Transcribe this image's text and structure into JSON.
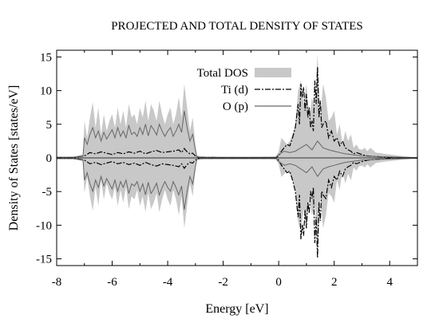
{
  "chart_data": {
    "type": "area",
    "title": "PROJECTED AND TOTAL DENSITY OF STATES",
    "xlabel": "Energy [eV]",
    "ylabel": "Density of States [states/eV]",
    "xlim": [
      -8,
      5
    ],
    "ylim": [
      -16,
      16
    ],
    "xticks": [
      -8,
      -6,
      -4,
      -2,
      0,
      2,
      4
    ],
    "yticks": [
      -15,
      -10,
      -5,
      0,
      5,
      10,
      15
    ],
    "grid": false,
    "legend_position": "top-center",
    "series": [
      {
        "name": "Total DOS",
        "style": "filled",
        "color": "#c8c8c8",
        "x": [
          -8,
          -7.4,
          -7.05,
          -7.0,
          -6.9,
          -6.8,
          -6.7,
          -6.6,
          -6.5,
          -6.4,
          -6.3,
          -6.2,
          -6.1,
          -6.0,
          -5.9,
          -5.8,
          -5.7,
          -5.6,
          -5.5,
          -5.4,
          -5.3,
          -5.2,
          -5.1,
          -5.0,
          -4.9,
          -4.8,
          -4.7,
          -4.6,
          -4.5,
          -4.4,
          -4.3,
          -4.2,
          -4.1,
          -4.0,
          -3.9,
          -3.8,
          -3.7,
          -3.6,
          -3.5,
          -3.4,
          -3.3,
          -3.2,
          -3.1,
          -3.0,
          -2.95,
          -2.8,
          -2.0,
          -1.0,
          -0.1,
          0.0,
          0.1,
          0.2,
          0.3,
          0.4,
          0.5,
          0.6,
          0.7,
          0.8,
          0.9,
          1.0,
          1.1,
          1.2,
          1.3,
          1.4,
          1.5,
          1.6,
          1.7,
          1.8,
          1.9,
          2.0,
          2.1,
          2.2,
          2.3,
          2.4,
          2.5,
          2.6,
          2.7,
          2.8,
          2.9,
          3.0,
          3.1,
          3.2,
          3.3,
          3.5,
          3.8,
          4.2,
          4.6,
          5.0
        ],
        "y": [
          0.2,
          0.2,
          0.5,
          5.5,
          3.0,
          6.0,
          8.3,
          4.5,
          7.5,
          3.5,
          6.5,
          4.0,
          5.5,
          6.5,
          4.5,
          7.5,
          5.0,
          7.0,
          4.5,
          8.0,
          6.0,
          6.5,
          5.0,
          7.5,
          6.0,
          8.5,
          5.5,
          8.0,
          7.0,
          5.5,
          8.5,
          6.5,
          5.0,
          6.5,
          7.5,
          5.0,
          6.5,
          9.0,
          6.0,
          11.0,
          7.5,
          4.0,
          6.0,
          2.0,
          0.3,
          0.2,
          0.15,
          0.15,
          0.2,
          1.0,
          3.0,
          2.5,
          2.0,
          2.5,
          3.5,
          5.0,
          10.0,
          11.5,
          8.0,
          11.0,
          6.0,
          9.0,
          7.5,
          15.5,
          6.0,
          11.0,
          9.0,
          5.5,
          6.0,
          7.0,
          3.5,
          5.0,
          2.0,
          4.0,
          2.5,
          3.5,
          1.5,
          2.0,
          1.3,
          1.2,
          1.5,
          1.0,
          1.5,
          0.8,
          0.6,
          0.4,
          0.2,
          0.1
        ]
      },
      {
        "name": "Ti (d)",
        "style": "dash-dot",
        "color": "#000000",
        "x": [
          -8,
          -7.4,
          -7.0,
          -6.8,
          -6.6,
          -6.4,
          -6.2,
          -6.0,
          -5.8,
          -5.6,
          -5.4,
          -5.2,
          -5.0,
          -4.8,
          -4.6,
          -4.4,
          -4.2,
          -4.0,
          -3.8,
          -3.6,
          -3.5,
          -3.4,
          -3.3,
          -3.2,
          -3.1,
          -3.0,
          -2.9,
          -2.0,
          -1.0,
          -0.1,
          0.0,
          0.1,
          0.2,
          0.3,
          0.4,
          0.5,
          0.6,
          0.7,
          0.75,
          0.8,
          0.85,
          0.9,
          0.95,
          1.0,
          1.05,
          1.1,
          1.15,
          1.2,
          1.25,
          1.3,
          1.35,
          1.4,
          1.45,
          1.5,
          1.55,
          1.6,
          1.7,
          1.8,
          1.9,
          2.0,
          2.1,
          2.2,
          2.3,
          2.4,
          2.5,
          2.6,
          2.7,
          2.8,
          3.0,
          3.2,
          3.5,
          4.0,
          4.5,
          5.0
        ],
        "y": [
          0.05,
          0.05,
          0.3,
          0.8,
          0.6,
          0.9,
          0.7,
          0.5,
          0.8,
          0.6,
          0.9,
          0.7,
          1.0,
          0.6,
          0.9,
          1.1,
          0.8,
          0.9,
          1.0,
          1.2,
          0.8,
          1.4,
          0.9,
          0.6,
          0.7,
          0.3,
          0.1,
          0.05,
          0.05,
          0.05,
          0.3,
          1.0,
          1.5,
          2.0,
          1.8,
          3.0,
          4.5,
          8.0,
          5.0,
          11.0,
          9.0,
          10.5,
          7.0,
          9.5,
          6.0,
          7.5,
          4.5,
          5.5,
          4.0,
          11.5,
          8.0,
          13.5,
          6.0,
          8.5,
          4.5,
          5.0,
          5.5,
          3.0,
          4.0,
          2.5,
          3.0,
          1.8,
          2.5,
          1.5,
          1.2,
          1.0,
          0.6,
          0.8,
          0.5,
          0.3,
          0.2,
          0.1,
          0.05,
          0.03
        ]
      },
      {
        "name": "O (p)",
        "style": "solid",
        "color": "#666666",
        "x": [
          -8,
          -7.4,
          -7.05,
          -7.0,
          -6.9,
          -6.8,
          -6.7,
          -6.6,
          -6.5,
          -6.4,
          -6.3,
          -6.2,
          -6.1,
          -6.0,
          -5.9,
          -5.8,
          -5.7,
          -5.6,
          -5.5,
          -5.4,
          -5.3,
          -5.2,
          -5.1,
          -5.0,
          -4.9,
          -4.8,
          -4.7,
          -4.6,
          -4.5,
          -4.4,
          -4.3,
          -4.2,
          -4.1,
          -4.0,
          -3.9,
          -3.8,
          -3.7,
          -3.6,
          -3.5,
          -3.4,
          -3.3,
          -3.2,
          -3.1,
          -3.0,
          -2.95,
          -2.8,
          -2.0,
          -1.0,
          -0.1,
          0.0,
          0.2,
          0.4,
          0.6,
          0.8,
          1.0,
          1.2,
          1.4,
          1.6,
          1.8,
          2.0,
          2.2,
          2.4,
          2.6,
          2.8,
          3.0,
          3.5,
          4.0,
          4.5,
          5.0
        ],
        "y": [
          0.1,
          0.1,
          0.3,
          3.0,
          2.0,
          3.5,
          4.5,
          3.0,
          4.0,
          2.5,
          3.8,
          2.8,
          3.5,
          4.2,
          3.0,
          4.5,
          3.2,
          4.0,
          3.0,
          4.8,
          3.5,
          3.8,
          3.2,
          4.5,
          3.5,
          5.0,
          3.3,
          4.8,
          4.2,
          3.4,
          5.0,
          4.0,
          3.2,
          4.0,
          4.5,
          3.2,
          4.0,
          5.0,
          3.8,
          7.0,
          4.5,
          2.5,
          3.5,
          1.2,
          0.2,
          0.1,
          0.1,
          0.1,
          0.1,
          0.5,
          1.0,
          0.8,
          1.0,
          1.5,
          2.0,
          1.2,
          2.5,
          1.5,
          1.2,
          1.0,
          0.8,
          0.6,
          0.5,
          0.4,
          0.3,
          0.2,
          0.15,
          0.1,
          0.05
        ]
      }
    ]
  }
}
